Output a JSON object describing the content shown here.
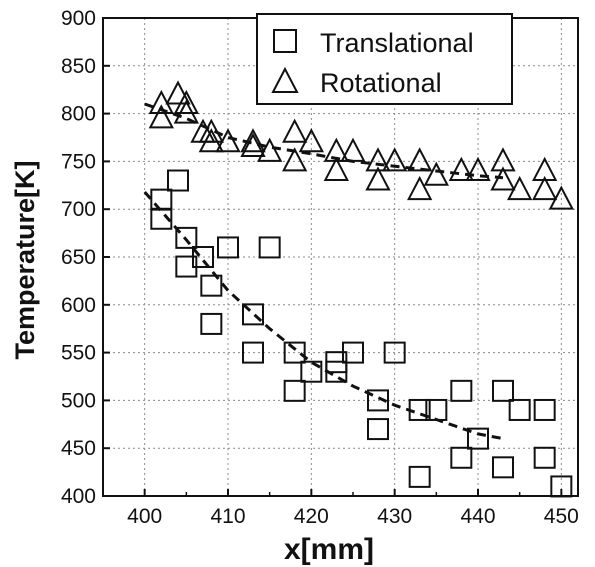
{
  "chart_data": {
    "type": "scatter",
    "xlabel": "x[mm]",
    "ylabel": "Temperature[K]",
    "xlim": [
      395,
      452
    ],
    "ylim": [
      400,
      900
    ],
    "xticks": [
      400,
      410,
      420,
      430,
      440,
      450
    ],
    "yticks": [
      400,
      450,
      500,
      550,
      600,
      650,
      700,
      750,
      800,
      850,
      900
    ],
    "grid": true,
    "legend_position": "top-right",
    "series": [
      {
        "name": "Translational",
        "marker": "square",
        "points": [
          [
            402,
            690
          ],
          [
            402,
            710
          ],
          [
            404,
            730
          ],
          [
            405,
            670
          ],
          [
            405,
            640
          ],
          [
            407,
            650
          ],
          [
            408,
            620
          ],
          [
            408,
            580
          ],
          [
            410,
            660
          ],
          [
            413,
            590
          ],
          [
            413,
            550
          ],
          [
            415,
            660
          ],
          [
            418,
            550
          ],
          [
            418,
            510
          ],
          [
            420,
            530
          ],
          [
            423,
            540
          ],
          [
            423,
            530
          ],
          [
            425,
            550
          ],
          [
            428,
            500
          ],
          [
            428,
            470
          ],
          [
            430,
            550
          ],
          [
            433,
            490
          ],
          [
            433,
            420
          ],
          [
            435,
            490
          ],
          [
            438,
            510
          ],
          [
            438,
            440
          ],
          [
            440,
            460
          ],
          [
            443,
            510
          ],
          [
            443,
            430
          ],
          [
            445,
            490
          ],
          [
            448,
            490
          ],
          [
            448,
            440
          ],
          [
            450,
            410
          ]
        ],
        "trend": [
          [
            400,
            718
          ],
          [
            405,
            668
          ],
          [
            410,
            615
          ],
          [
            415,
            575
          ],
          [
            420,
            540
          ],
          [
            425,
            515
          ],
          [
            430,
            495
          ],
          [
            435,
            480
          ],
          [
            440,
            465
          ],
          [
            443,
            460
          ]
        ]
      },
      {
        "name": "Rotational",
        "marker": "triangle",
        "points": [
          [
            402,
            810
          ],
          [
            402,
            795
          ],
          [
            404,
            820
          ],
          [
            405,
            810
          ],
          [
            405,
            800
          ],
          [
            407,
            780
          ],
          [
            408,
            770
          ],
          [
            408,
            780
          ],
          [
            410,
            770
          ],
          [
            413,
            765
          ],
          [
            413,
            770
          ],
          [
            415,
            760
          ],
          [
            418,
            780
          ],
          [
            418,
            750
          ],
          [
            420,
            770
          ],
          [
            423,
            760
          ],
          [
            423,
            740
          ],
          [
            425,
            760
          ],
          [
            428,
            750
          ],
          [
            428,
            730
          ],
          [
            430,
            750
          ],
          [
            433,
            750
          ],
          [
            433,
            720
          ],
          [
            435,
            735
          ],
          [
            438,
            740
          ],
          [
            440,
            740
          ],
          [
            443,
            750
          ],
          [
            443,
            730
          ],
          [
            445,
            720
          ],
          [
            448,
            740
          ],
          [
            448,
            720
          ],
          [
            450,
            710
          ]
        ],
        "trend": [
          [
            400,
            810
          ],
          [
            405,
            795
          ],
          [
            410,
            775
          ],
          [
            415,
            765
          ],
          [
            420,
            758
          ],
          [
            425,
            750
          ],
          [
            430,
            745
          ],
          [
            435,
            740
          ],
          [
            440,
            735
          ],
          [
            443,
            733
          ]
        ]
      }
    ]
  }
}
